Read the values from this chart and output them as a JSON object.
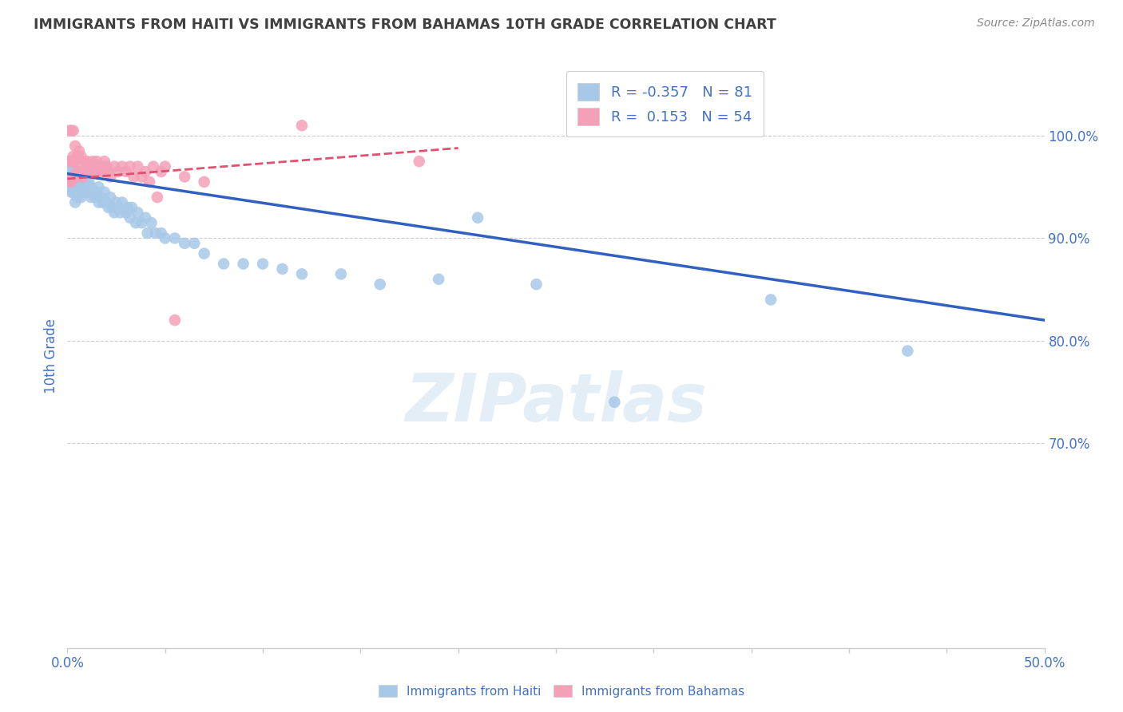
{
  "title": "IMMIGRANTS FROM HAITI VS IMMIGRANTS FROM BAHAMAS 10TH GRADE CORRELATION CHART",
  "source": "Source: ZipAtlas.com",
  "ylabel": "10th Grade",
  "right_yticks": [
    "100.0%",
    "90.0%",
    "80.0%",
    "70.0%"
  ],
  "right_ytick_vals": [
    1.0,
    0.9,
    0.8,
    0.7
  ],
  "legend_haiti_r": "-0.357",
  "legend_haiti_n": "81",
  "legend_bahamas_r": "0.153",
  "legend_bahamas_n": "54",
  "haiti_color": "#a8c8e8",
  "bahamas_color": "#f4a0b8",
  "haiti_line_color": "#3060c0",
  "bahamas_line_color": "#e05070",
  "text_color": "#4472c4",
  "title_color": "#404040",
  "watermark": "ZIPatlas",
  "xlim": [
    0.0,
    0.5
  ],
  "ylim": [
    0.5,
    1.07
  ],
  "haiti_scatter_x": [
    0.001,
    0.001,
    0.001,
    0.002,
    0.002,
    0.002,
    0.002,
    0.003,
    0.003,
    0.003,
    0.003,
    0.004,
    0.004,
    0.004,
    0.004,
    0.005,
    0.005,
    0.005,
    0.006,
    0.006,
    0.006,
    0.007,
    0.007,
    0.007,
    0.008,
    0.008,
    0.009,
    0.009,
    0.01,
    0.01,
    0.011,
    0.011,
    0.012,
    0.012,
    0.013,
    0.014,
    0.015,
    0.016,
    0.016,
    0.017,
    0.018,
    0.019,
    0.02,
    0.021,
    0.022,
    0.023,
    0.024,
    0.025,
    0.026,
    0.027,
    0.028,
    0.03,
    0.031,
    0.032,
    0.033,
    0.035,
    0.036,
    0.038,
    0.04,
    0.041,
    0.043,
    0.045,
    0.048,
    0.05,
    0.055,
    0.06,
    0.065,
    0.07,
    0.08,
    0.09,
    0.1,
    0.11,
    0.12,
    0.14,
    0.16,
    0.19,
    0.21,
    0.24,
    0.28,
    0.36,
    0.43
  ],
  "haiti_scatter_y": [
    0.975,
    0.965,
    0.955,
    0.97,
    0.96,
    0.95,
    0.945,
    0.97,
    0.96,
    0.955,
    0.945,
    0.965,
    0.955,
    0.945,
    0.935,
    0.96,
    0.95,
    0.94,
    0.965,
    0.955,
    0.945,
    0.96,
    0.95,
    0.94,
    0.955,
    0.945,
    0.955,
    0.945,
    0.955,
    0.945,
    0.955,
    0.945,
    0.95,
    0.94,
    0.945,
    0.94,
    0.945,
    0.95,
    0.935,
    0.94,
    0.935,
    0.945,
    0.935,
    0.93,
    0.94,
    0.93,
    0.925,
    0.935,
    0.93,
    0.925,
    0.935,
    0.925,
    0.93,
    0.92,
    0.93,
    0.915,
    0.925,
    0.915,
    0.92,
    0.905,
    0.915,
    0.905,
    0.905,
    0.9,
    0.9,
    0.895,
    0.895,
    0.885,
    0.875,
    0.875,
    0.875,
    0.87,
    0.865,
    0.865,
    0.855,
    0.86,
    0.92,
    0.855,
    0.74,
    0.84,
    0.79
  ],
  "bahamas_scatter_x": [
    0.001,
    0.001,
    0.001,
    0.002,
    0.002,
    0.002,
    0.003,
    0.003,
    0.003,
    0.004,
    0.004,
    0.004,
    0.005,
    0.005,
    0.006,
    0.006,
    0.007,
    0.007,
    0.008,
    0.008,
    0.009,
    0.009,
    0.01,
    0.011,
    0.012,
    0.013,
    0.014,
    0.015,
    0.016,
    0.017,
    0.018,
    0.019,
    0.02,
    0.021,
    0.022,
    0.024,
    0.026,
    0.028,
    0.03,
    0.032,
    0.034,
    0.036,
    0.038,
    0.04,
    0.042,
    0.044,
    0.046,
    0.048,
    0.05,
    0.055,
    0.06,
    0.07,
    0.12,
    0.18
  ],
  "bahamas_scatter_y": [
    1.005,
    0.975,
    0.955,
    1.005,
    0.975,
    0.955,
    1.005,
    0.98,
    0.96,
    0.99,
    0.975,
    0.96,
    0.98,
    0.965,
    0.985,
    0.965,
    0.98,
    0.96,
    0.975,
    0.96,
    0.975,
    0.965,
    0.975,
    0.97,
    0.965,
    0.975,
    0.965,
    0.975,
    0.965,
    0.97,
    0.965,
    0.975,
    0.97,
    0.965,
    0.96,
    0.97,
    0.965,
    0.97,
    0.965,
    0.97,
    0.96,
    0.97,
    0.96,
    0.965,
    0.955,
    0.97,
    0.94,
    0.965,
    0.97,
    0.82,
    0.96,
    0.955,
    1.01,
    0.975
  ],
  "haiti_trend_x0": 0.0,
  "haiti_trend_y0": 0.963,
  "haiti_trend_x1": 0.5,
  "haiti_trend_y1": 0.82,
  "bahamas_trend_x0": 0.0,
  "bahamas_trend_y0": 0.958,
  "bahamas_trend_x1": 0.2,
  "bahamas_trend_y1": 0.988
}
